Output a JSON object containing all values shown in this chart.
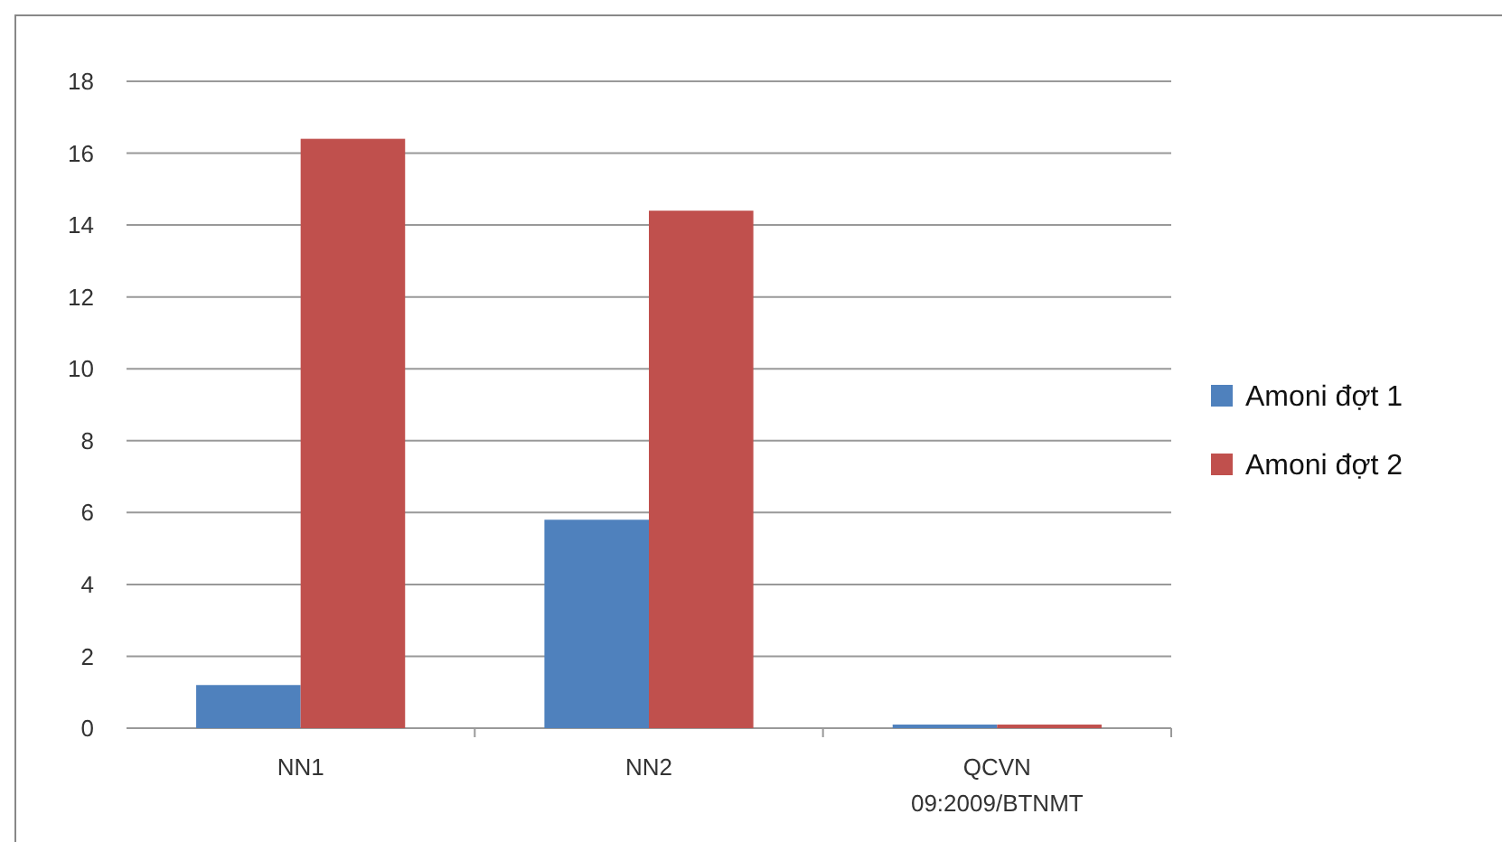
{
  "chart_data": {
    "type": "bar",
    "categories": [
      "NN1",
      "NN2",
      "QCVN 09:2009/BTNMT"
    ],
    "series": [
      {
        "name": "Amoni đợt 1",
        "color": "#4f81bd",
        "values": [
          1.2,
          5.8,
          0.1
        ]
      },
      {
        "name": "Amoni đợt 2",
        "color": "#c0504d",
        "values": [
          16.4,
          14.4,
          0.1
        ]
      }
    ],
    "ylim": [
      0,
      18
    ],
    "yticks": [
      0,
      2,
      4,
      6,
      8,
      10,
      12,
      14,
      16,
      18
    ],
    "grid": "y",
    "legend": "right"
  }
}
